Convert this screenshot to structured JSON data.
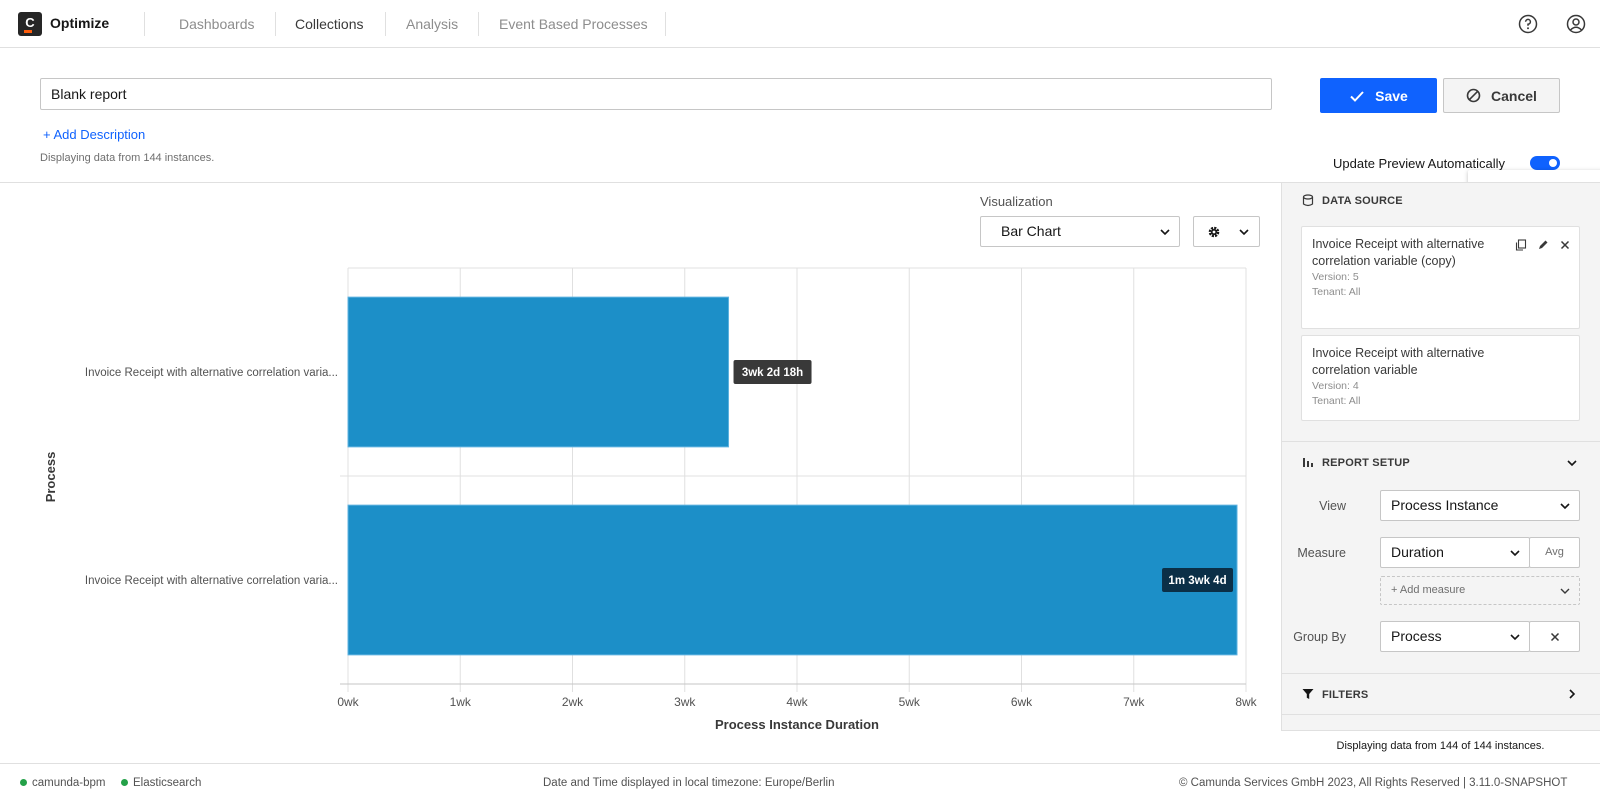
{
  "app": {
    "brand": "Optimize",
    "logo_letter": "C",
    "nav": [
      {
        "label": "Dashboards",
        "active": false
      },
      {
        "label": "Collections",
        "active": true
      },
      {
        "label": "Analysis",
        "active": false
      },
      {
        "label": "Event Based Processes",
        "active": false
      }
    ],
    "icons": {
      "help": "help-circle-icon",
      "user": "user-avatar-icon"
    }
  },
  "report": {
    "name": "Blank report",
    "add_description": "+ Add Description",
    "data_info": "Displaying data from 144 instances.",
    "save_label": "Save",
    "cancel_label": "Cancel",
    "update_preview_label": "Update Preview Automatically",
    "update_preview_on": true,
    "tooltip": "Configuration Options"
  },
  "visualization": {
    "label": "Visualization",
    "selected": "Bar Chart"
  },
  "chart_data": {
    "type": "bar",
    "orientation": "horizontal",
    "categories": [
      "Invoice Receipt with alternative correlation varia...",
      "Invoice Receipt with alternative correlation varia..."
    ],
    "values": [
      3.39,
      7.92
    ],
    "value_labels": [
      "3wk 2d 18h",
      "1m 3wk 4d"
    ],
    "xlabel": "Process Instance Duration",
    "ylabel": "Process",
    "xlim": [
      0,
      8
    ],
    "xticks": [
      "0wk",
      "1wk",
      "2wk",
      "3wk",
      "4wk",
      "5wk",
      "6wk",
      "7wk",
      "8wk"
    ],
    "grid": true,
    "bar_color": "#1c8fc8",
    "label_colors": [
      "#393939",
      "#0b2f47"
    ]
  },
  "panel": {
    "data_source_title": "DATA SOURCE",
    "sources": [
      {
        "name": "Invoice Receipt with alternative correlation variable (copy)",
        "version": "Version: 5",
        "tenant": "Tenant: All",
        "actions": [
          "copy-icon",
          "edit-icon",
          "close-icon"
        ]
      },
      {
        "name": "Invoice Receipt with alternative correlation variable",
        "version": "Version: 4",
        "tenant": "Tenant: All"
      }
    ],
    "report_setup_title": "REPORT SETUP",
    "view_label": "View",
    "view_value": "Process Instance",
    "measure_label": "Measure",
    "measure_value": "Duration",
    "measure_agg": "Avg",
    "add_measure": "+ Add measure",
    "group_by_label": "Group By",
    "group_by_value": "Process",
    "filters_title": "FILTERS",
    "footer_info": "Displaying data from 144 of 144 instances."
  },
  "footer": {
    "engine": "camunda-bpm",
    "db": "Elasticsearch",
    "timezone": "Date and Time displayed in local timezone: Europe/Berlin",
    "copyright": "© Camunda Services GmbH 2023, All Rights Reserved | 3.11.0-SNAPSHOT",
    "status_color": "#24a148"
  }
}
